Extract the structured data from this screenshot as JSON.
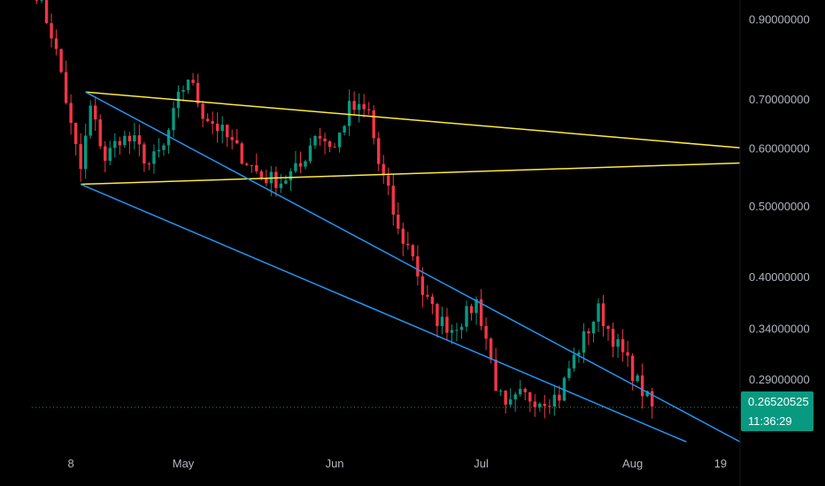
{
  "chart_data": {
    "type": "candlestick",
    "y_scale": "log",
    "ylim": [
      0.238,
      0.955
    ],
    "xlim": [
      "2024-03-31",
      "2024-08-23"
    ],
    "x_ticks": [
      {
        "date": "2024-04-08",
        "label": "8"
      },
      {
        "date": "2024-05-01",
        "label": "May"
      },
      {
        "date": "2024-06-01",
        "label": "Jun"
      },
      {
        "date": "2024-07-01",
        "label": "Jul"
      },
      {
        "date": "2024-08-01",
        "label": "Aug"
      },
      {
        "date": "2024-08-19",
        "label": "19"
      }
    ],
    "y_ticks": [
      {
        "value": 0.9,
        "label": "0.90000000"
      },
      {
        "value": 0.7,
        "label": "0.70000000"
      },
      {
        "value": 0.6,
        "label": "0.60000000"
      },
      {
        "value": 0.5,
        "label": "0.50000000"
      },
      {
        "value": 0.4,
        "label": "0.40000000"
      },
      {
        "value": 0.34,
        "label": "0.34000000"
      },
      {
        "value": 0.29,
        "label": "0.29000000"
      }
    ],
    "current_price": {
      "value": 0.26520525,
      "label": "0.26520525",
      "countdown": "11:36:29",
      "color": "#089981"
    },
    "colors": {
      "up": "#089981",
      "down": "#f23645",
      "triangle": "#ffeb3b",
      "channel": "#2196f3"
    },
    "grid": false,
    "trendlines": [
      {
        "name": "triangle-upper",
        "color": "#ffeb3b",
        "from": {
          "date": "2024-04-11",
          "value": 0.715
        },
        "to": {
          "date": "2024-08-23",
          "value": 0.6
        }
      },
      {
        "name": "triangle-lower",
        "color": "#ffeb3b",
        "from": {
          "date": "2024-04-10",
          "value": 0.535
        },
        "to": {
          "date": "2024-08-23",
          "value": 0.572
        }
      },
      {
        "name": "channel-upper",
        "color": "#2196f3",
        "from": {
          "date": "2024-04-11",
          "value": 0.715
        },
        "to": {
          "date": "2024-08-23",
          "value": 0.238
        }
      },
      {
        "name": "channel-lower",
        "color": "#2196f3",
        "from": {
          "date": "2024-04-10",
          "value": 0.535
        },
        "to": {
          "date": "2024-08-12",
          "value": 0.238
        }
      }
    ],
    "anchors": [
      [
        "2024-04-01",
        0.98
      ],
      [
        "2024-04-04",
        0.86
      ],
      [
        "2024-04-06",
        0.76
      ],
      [
        "2024-04-08",
        0.64
      ],
      [
        "2024-04-10",
        0.56
      ],
      [
        "2024-04-12",
        0.68
      ],
      [
        "2024-04-15",
        0.58
      ],
      [
        "2024-04-18",
        0.62
      ],
      [
        "2024-04-21",
        0.61
      ],
      [
        "2024-04-24",
        0.57
      ],
      [
        "2024-04-27",
        0.6
      ],
      [
        "2024-04-30",
        0.7
      ],
      [
        "2024-05-02",
        0.75
      ],
      [
        "2024-05-05",
        0.67
      ],
      [
        "2024-05-09",
        0.63
      ],
      [
        "2024-05-13",
        0.585
      ],
      [
        "2024-05-17",
        0.548
      ],
      [
        "2024-05-21",
        0.54
      ],
      [
        "2024-05-25",
        0.565
      ],
      [
        "2024-05-28",
        0.63
      ],
      [
        "2024-06-01",
        0.6
      ],
      [
        "2024-06-04",
        0.68
      ],
      [
        "2024-06-08",
        0.67
      ],
      [
        "2024-06-10",
        0.57
      ],
      [
        "2024-06-12",
        0.52
      ],
      [
        "2024-06-14",
        0.46
      ],
      [
        "2024-06-17",
        0.43
      ],
      [
        "2024-06-19",
        0.38
      ],
      [
        "2024-06-22",
        0.35
      ],
      [
        "2024-06-25",
        0.34
      ],
      [
        "2024-06-28",
        0.355
      ],
      [
        "2024-06-30",
        0.37
      ],
      [
        "2024-07-02",
        0.33
      ],
      [
        "2024-07-04",
        0.285
      ],
      [
        "2024-07-06",
        0.262
      ],
      [
        "2024-07-09",
        0.275
      ],
      [
        "2024-07-13",
        0.272
      ],
      [
        "2024-07-17",
        0.275
      ],
      [
        "2024-07-19",
        0.3
      ],
      [
        "2024-07-22",
        0.33
      ],
      [
        "2024-07-25",
        0.36
      ],
      [
        "2024-07-28",
        0.33
      ],
      [
        "2024-07-31",
        0.305
      ],
      [
        "2024-08-02",
        0.287
      ],
      [
        "2024-08-05",
        0.265
      ]
    ]
  }
}
